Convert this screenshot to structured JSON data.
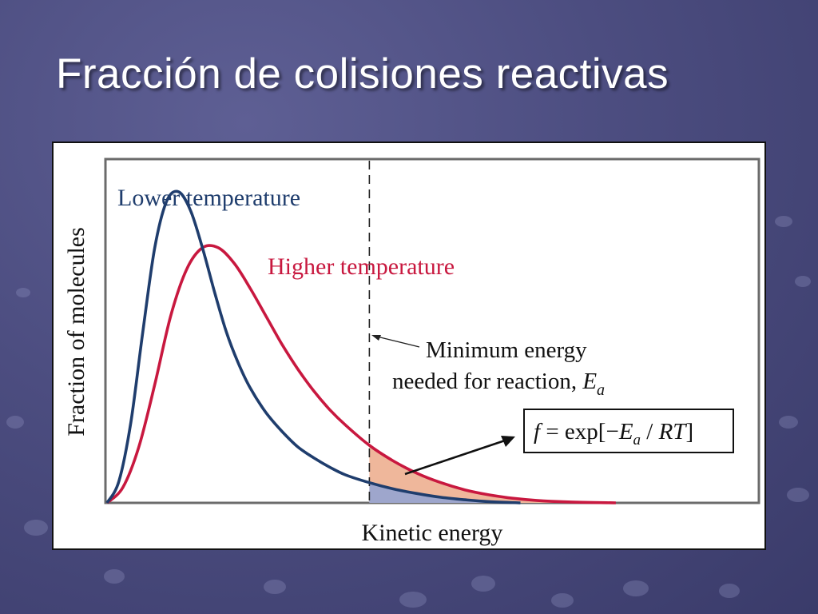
{
  "slide": {
    "title": "Fracción de colisiones reactivas"
  },
  "colors": {
    "lower_curve": "#1f3d6d",
    "higher_curve": "#c8183f",
    "shade_both": "#9ea6cc",
    "shade_higher_only": "#efb79b",
    "threshold_line": "#222222",
    "plot_border": "#6b6b6b"
  },
  "chart_data": {
    "type": "line",
    "xlabel": "Kinetic energy",
    "ylabel": "Fraction of molecules",
    "threshold": {
      "x": 3.3,
      "label_line1": "Minimum energy",
      "label_line2": "needed for reaction, ",
      "symbol_main": "E",
      "symbol_sub": "a"
    },
    "formula": {
      "lhs": "f",
      "equals": " = ",
      "func": "exp[",
      "minus": "−",
      "E": "E",
      "sub": "a",
      "slash": " / ",
      "RT": "RT",
      "close": "]"
    },
    "xlim": [
      0,
      8.2
    ],
    "ylim": [
      0,
      1.1
    ],
    "grid": false,
    "series": [
      {
        "name": "Lower temperature",
        "x": [
          0,
          0.15,
          0.3,
          0.45,
          0.6,
          0.75,
          0.9,
          1.05,
          1.2,
          1.35,
          1.5,
          1.65,
          1.8,
          2.0,
          2.2,
          2.4,
          2.6,
          2.8,
          3.0,
          3.3,
          3.6,
          3.9,
          4.2,
          4.5,
          4.8,
          5.2
        ],
        "y": [
          0,
          0.07,
          0.26,
          0.55,
          0.82,
          0.97,
          1.0,
          0.94,
          0.82,
          0.68,
          0.55,
          0.45,
          0.37,
          0.29,
          0.23,
          0.18,
          0.145,
          0.115,
          0.09,
          0.065,
          0.045,
          0.03,
          0.018,
          0.01,
          0.004,
          0
        ]
      },
      {
        "name": "Higher temperature",
        "x": [
          0,
          0.2,
          0.4,
          0.6,
          0.8,
          1.0,
          1.2,
          1.4,
          1.6,
          1.8,
          2.0,
          2.2,
          2.4,
          2.6,
          2.8,
          3.0,
          3.3,
          3.6,
          3.9,
          4.2,
          4.5,
          4.8,
          5.1,
          5.4,
          5.8,
          6.4
        ],
        "y": [
          0,
          0.05,
          0.18,
          0.38,
          0.6,
          0.75,
          0.82,
          0.82,
          0.77,
          0.69,
          0.6,
          0.51,
          0.43,
          0.36,
          0.3,
          0.25,
          0.185,
          0.135,
          0.095,
          0.065,
          0.042,
          0.026,
          0.015,
          0.008,
          0.003,
          0
        ]
      }
    ],
    "annotations": [
      {
        "text": "Lower temperature",
        "series": 0
      },
      {
        "text": "Higher temperature",
        "series": 1
      }
    ]
  }
}
